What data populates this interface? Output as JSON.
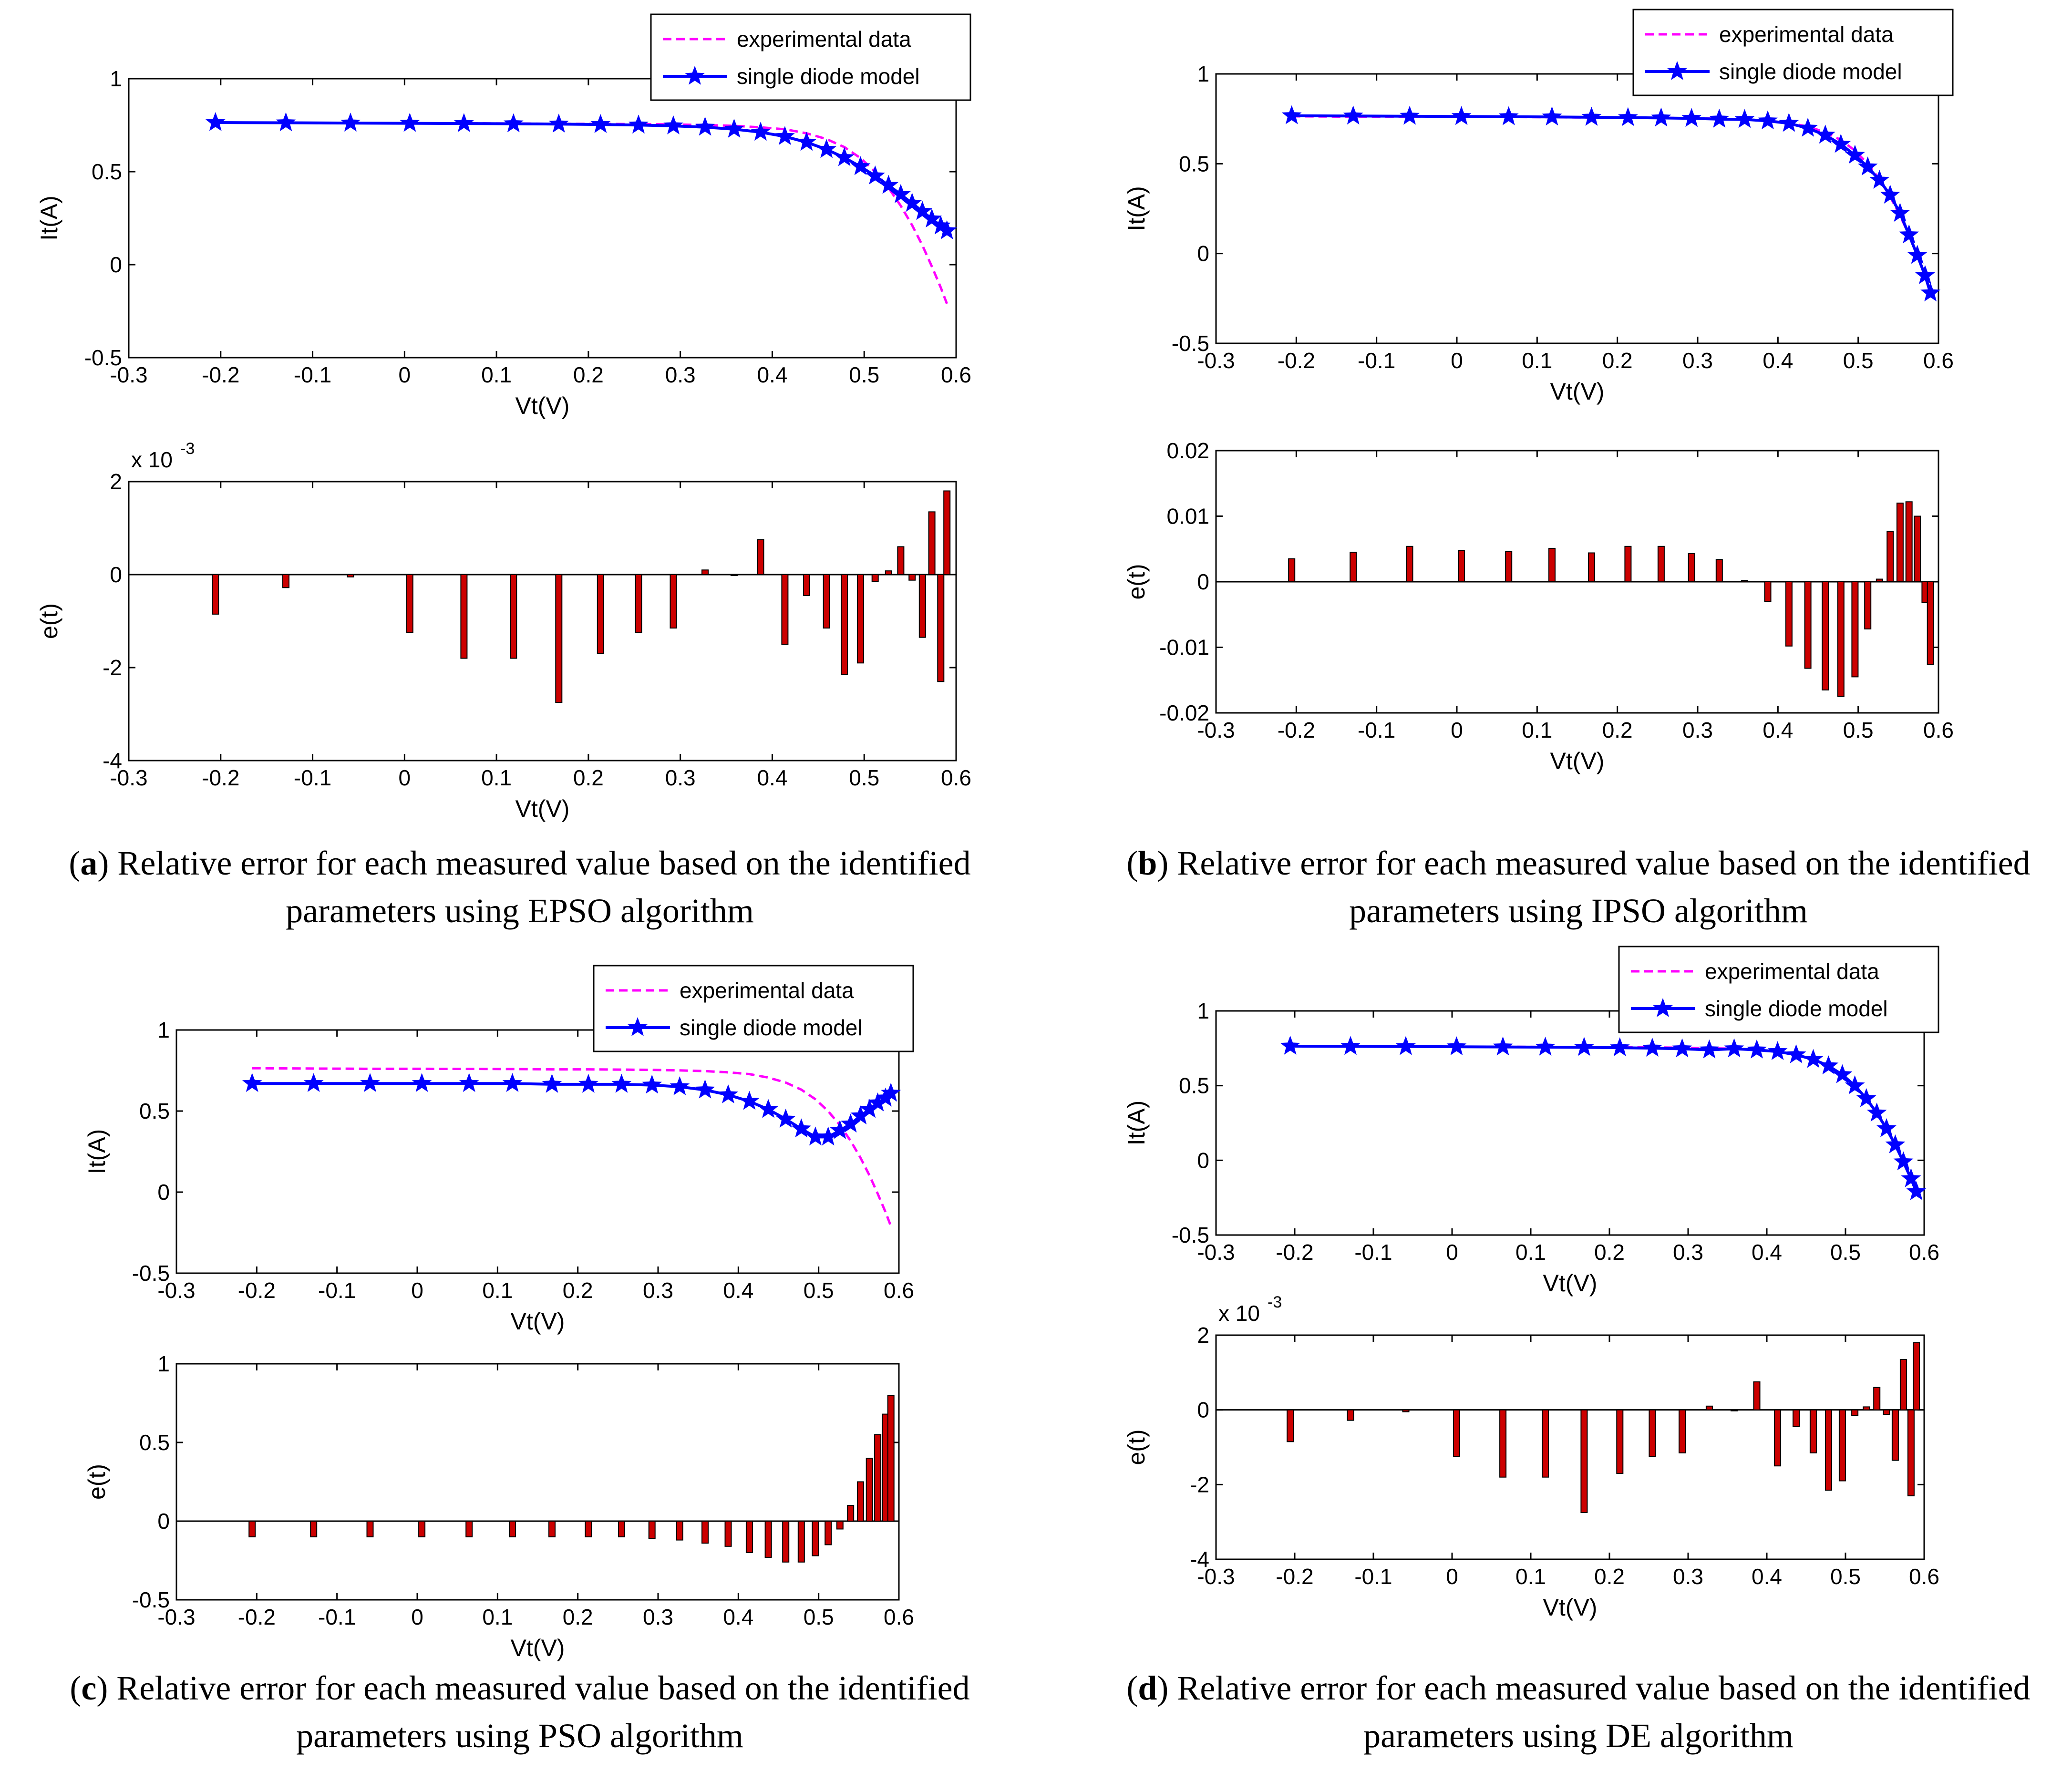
{
  "colors": {
    "experimental": "#ff00ff",
    "model": "#0000ff",
    "bar": "#cc0000"
  },
  "captions": [
    {
      "letter": "a",
      "text": "Relative error for each measured value based on the identified parameters using EPSO algorithm"
    },
    {
      "letter": "b",
      "text": "Relative error for each measured value based on the identified parameters using IPSO algorithm"
    },
    {
      "letter": "c",
      "text": "Relative error for each measured value based on the identified parameters using PSO algorithm"
    },
    {
      "letter": "d",
      "text": "Relative error for each measured value based on the identified parameters using DE algorithm"
    }
  ],
  "chart_data": [
    {
      "type": "line",
      "panel": "a",
      "xlabel": "Vt(V)",
      "ylabel": "It(A)",
      "xlim": [
        -0.3,
        0.6
      ],
      "ylim": [
        -0.5,
        1
      ],
      "xticks": [
        "-0.3",
        "-0.2",
        "-0.1",
        "0",
        "0.1",
        "0.2",
        "0.3",
        "0.4",
        "0.5",
        "0.6"
      ],
      "yticks": [
        "-0.5",
        "0",
        "0.5",
        "1"
      ],
      "legend": [
        "experimental data",
        "single diode model"
      ],
      "legend_position": "top-right",
      "x": [
        -0.2057,
        -0.1291,
        -0.0588,
        0.0057,
        0.0646,
        0.1185,
        0.1678,
        0.2132,
        0.2545,
        0.2924,
        0.3269,
        0.3585,
        0.3873,
        0.4137,
        0.4373,
        0.459,
        0.4784,
        0.496,
        0.5119,
        0.5265,
        0.5398,
        0.5521,
        0.5633,
        0.5736,
        0.5833,
        0.59
      ],
      "series": [
        {
          "name": "experimental data",
          "values": [
            0.764,
            0.762,
            0.7605,
            0.7605,
            0.76,
            0.759,
            0.757,
            0.757,
            0.7555,
            0.754,
            0.7505,
            0.7465,
            0.7385,
            0.728,
            0.7065,
            0.6755,
            0.632,
            0.573,
            0.499,
            0.413,
            0.3165,
            0.212,
            0.1035,
            -0.01,
            -0.123,
            -0.21
          ]
        },
        {
          "name": "single diode model",
          "values": [
            0.7641,
            0.7627,
            0.7614,
            0.7601,
            0.7588,
            0.7574,
            0.7558,
            0.7537,
            0.7507,
            0.7462,
            0.7393,
            0.7285,
            0.7123,
            0.6891,
            0.6583,
            0.6196,
            0.5755,
            0.5272,
            0.4771,
            0.4266,
            0.3772,
            0.3301,
            0.2861,
            0.2456,
            0.2082,
            0.1823
          ]
        }
      ]
    },
    {
      "type": "bar",
      "panel": "a",
      "xlabel": "Vt(V)",
      "ylabel": "e(t)",
      "multiplier": "x 10",
      "multiplier_exp": "-3",
      "xlim": [
        -0.3,
        0.6
      ],
      "ylim": [
        -4,
        2
      ],
      "xticks": [
        "-0.3",
        "-0.2",
        "-0.1",
        "0",
        "0.1",
        "0.2",
        "0.3",
        "0.4",
        "0.5",
        "0.6"
      ],
      "yticks": [
        "-4",
        "-2",
        "0",
        "2"
      ],
      "x": [
        -0.2057,
        -0.1291,
        -0.0588,
        0.0057,
        0.0646,
        0.1185,
        0.1678,
        0.2132,
        0.2545,
        0.2924,
        0.3269,
        0.3585,
        0.3873,
        0.4137,
        0.4373,
        0.459,
        0.4784,
        0.496,
        0.5119,
        0.5265,
        0.5398,
        0.5521,
        0.5633,
        0.5736,
        0.5833,
        0.59
      ],
      "values": [
        -0.85,
        -0.28,
        -0.05,
        -1.25,
        -1.8,
        -1.8,
        -2.75,
        -1.7,
        -1.25,
        -1.15,
        0.1,
        0,
        0.75,
        -1.5,
        -0.45,
        -1.15,
        -2.15,
        -1.9,
        -0.15,
        0.08,
        0.6,
        -0.12,
        -1.35,
        1.35,
        -2.3,
        1.8
      ]
    },
    {
      "type": "line",
      "panel": "b",
      "xlabel": "Vt(V)",
      "ylabel": "It(A)",
      "xlim": [
        -0.3,
        0.6
      ],
      "ylim": [
        -0.5,
        1
      ],
      "xticks": [
        "-0.3",
        "-0.2",
        "-0.1",
        "0",
        "0.1",
        "0.2",
        "0.3",
        "0.4",
        "0.5",
        "0.6"
      ],
      "yticks": [
        "-0.5",
        "0",
        "0.5",
        "1"
      ],
      "legend": [
        "experimental data",
        "single diode model"
      ],
      "legend_position": "top-right",
      "x": [
        -0.2057,
        -0.1291,
        -0.0588,
        0.0057,
        0.0646,
        0.1185,
        0.1678,
        0.2132,
        0.2545,
        0.2924,
        0.3269,
        0.3585,
        0.3873,
        0.4137,
        0.4373,
        0.459,
        0.4784,
        0.496,
        0.5119,
        0.5265,
        0.5398,
        0.5521,
        0.5633,
        0.5736,
        0.5833,
        0.59
      ],
      "series": [
        {
          "name": "experimental data",
          "values": [
            0.764,
            0.762,
            0.7605,
            0.7605,
            0.76,
            0.759,
            0.757,
            0.757,
            0.7555,
            0.754,
            0.7505,
            0.7465,
            0.7385,
            0.728,
            0.7065,
            0.6755,
            0.632,
            0.573,
            0.499,
            0.413,
            0.3165,
            0.212,
            0.1035,
            -0.01,
            -0.123,
            -0.21
          ]
        },
        {
          "name": "single diode model",
          "values": [
            0.7671,
            0.7656,
            0.7645,
            0.7628,
            0.7617,
            0.7602,
            0.7588,
            0.7569,
            0.7547,
            0.7524,
            0.7481,
            0.7465,
            0.7384,
            0.7249,
            0.6976,
            0.6593,
            0.6081,
            0.5473,
            0.4821,
            0.408,
            0.3251,
            0.2241,
            0.1039,
            -0.0101,
            -0.1227,
            -0.2195
          ]
        }
      ]
    },
    {
      "type": "bar",
      "panel": "b",
      "xlabel": "Vt(V)",
      "ylabel": "e(t)",
      "xlim": [
        -0.3,
        0.6
      ],
      "ylim": [
        -0.02,
        0.02
      ],
      "xticks": [
        "-0.3",
        "-0.2",
        "-0.1",
        "0",
        "0.1",
        "0.2",
        "0.3",
        "0.4",
        "0.5",
        "0.6"
      ],
      "yticks": [
        "-0.02",
        "-0.01",
        "0",
        "0.01",
        "0.02"
      ],
      "x": [
        -0.2057,
        -0.1291,
        -0.0588,
        0.0057,
        0.0646,
        0.1185,
        0.1678,
        0.2132,
        0.2545,
        0.2924,
        0.3269,
        0.3585,
        0.3873,
        0.4137,
        0.4373,
        0.459,
        0.4784,
        0.496,
        0.5119,
        0.5265,
        0.5398,
        0.5521,
        0.5633,
        0.5736,
        0.5833,
        0.59
      ],
      "values": [
        0.0035,
        0.0045,
        0.0054,
        0.0048,
        0.0046,
        0.0051,
        0.0044,
        0.0054,
        0.0054,
        0.0043,
        0.0034,
        0.0002,
        -0.003,
        -0.0098,
        -0.0132,
        -0.0165,
        -0.0175,
        -0.0145,
        -0.0072,
        0.0004,
        0.0077,
        0.012,
        0.0122,
        0.01,
        -0.0032,
        -0.0126
      ]
    },
    {
      "type": "line",
      "panel": "c",
      "xlabel": "Vt(V)",
      "ylabel": "It(A)",
      "xlim": [
        -0.3,
        0.6
      ],
      "ylim": [
        -0.5,
        1
      ],
      "xticks": [
        "-0.3",
        "-0.2",
        "-0.1",
        "0",
        "0.1",
        "0.2",
        "0.3",
        "0.4",
        "0.5",
        "0.6"
      ],
      "yticks": [
        "-0.5",
        "0",
        "0.5",
        "1"
      ],
      "legend": [
        "experimental data",
        "single diode model"
      ],
      "legend_position": "top-right",
      "x": [
        -0.2057,
        -0.1291,
        -0.0588,
        0.0057,
        0.0646,
        0.1185,
        0.1678,
        0.2132,
        0.2545,
        0.2924,
        0.3269,
        0.3585,
        0.3873,
        0.4137,
        0.4373,
        0.459,
        0.4784,
        0.496,
        0.5119,
        0.5265,
        0.5398,
        0.5521,
        0.5633,
        0.5736,
        0.5833,
        0.59
      ],
      "series": [
        {
          "name": "experimental data",
          "values": [
            0.764,
            0.762,
            0.7605,
            0.7605,
            0.76,
            0.759,
            0.757,
            0.757,
            0.7555,
            0.754,
            0.7505,
            0.7465,
            0.7385,
            0.728,
            0.7065,
            0.6755,
            0.632,
            0.573,
            0.499,
            0.413,
            0.3165,
            0.212,
            0.1035,
            -0.01,
            -0.123,
            -0.21
          ]
        },
        {
          "name": "single diode model",
          "values": [
            0.67,
            0.67,
            0.67,
            0.67,
            0.67,
            0.67,
            0.665,
            0.665,
            0.665,
            0.66,
            0.65,
            0.63,
            0.6,
            0.56,
            0.51,
            0.45,
            0.39,
            0.34,
            0.34,
            0.38,
            0.42,
            0.47,
            0.51,
            0.55,
            0.58,
            0.61
          ]
        }
      ]
    },
    {
      "type": "bar",
      "panel": "c",
      "xlabel": "Vt(V)",
      "ylabel": "e(t)",
      "xlim": [
        -0.3,
        0.6
      ],
      "ylim": [
        -0.5,
        1
      ],
      "xticks": [
        "-0.3",
        "-0.2",
        "-0.1",
        "0",
        "0.1",
        "0.2",
        "0.3",
        "0.4",
        "0.5",
        "0.6"
      ],
      "yticks": [
        "-0.5",
        "0",
        "0.5",
        "1"
      ],
      "x": [
        -0.2057,
        -0.1291,
        -0.0588,
        0.0057,
        0.0646,
        0.1185,
        0.1678,
        0.2132,
        0.2545,
        0.2924,
        0.3269,
        0.3585,
        0.3873,
        0.4137,
        0.4373,
        0.459,
        0.4784,
        0.496,
        0.5119,
        0.5265,
        0.5398,
        0.5521,
        0.5633,
        0.5736,
        0.5833,
        0.59
      ],
      "values": [
        -0.1,
        -0.1,
        -0.1,
        -0.1,
        -0.1,
        -0.1,
        -0.1,
        -0.1,
        -0.1,
        -0.11,
        -0.12,
        -0.14,
        -0.16,
        -0.2,
        -0.23,
        -0.26,
        -0.26,
        -0.22,
        -0.15,
        -0.05,
        0.1,
        0.25,
        0.4,
        0.55,
        0.68,
        0.8
      ]
    },
    {
      "type": "line",
      "panel": "d",
      "xlabel": "Vt(V)",
      "ylabel": "It(A)",
      "xlim": [
        -0.3,
        0.6
      ],
      "ylim": [
        -0.5,
        1
      ],
      "xticks": [
        "-0.3",
        "-0.2",
        "-0.1",
        "0",
        "0.1",
        "0.2",
        "0.3",
        "0.4",
        "0.5",
        "0.6"
      ],
      "yticks": [
        "-0.5",
        "0",
        "0.5",
        "1"
      ],
      "legend": [
        "experimental data",
        "single diode model"
      ],
      "legend_position": "top-right",
      "x": [
        -0.2057,
        -0.1291,
        -0.0588,
        0.0057,
        0.0646,
        0.1185,
        0.1678,
        0.2132,
        0.2545,
        0.2924,
        0.3269,
        0.3585,
        0.3873,
        0.4137,
        0.4373,
        0.459,
        0.4784,
        0.496,
        0.5119,
        0.5265,
        0.5398,
        0.5521,
        0.5633,
        0.5736,
        0.5833,
        0.59
      ],
      "series": [
        {
          "name": "experimental data",
          "values": [
            0.764,
            0.762,
            0.7605,
            0.7605,
            0.76,
            0.759,
            0.757,
            0.757,
            0.7555,
            0.754,
            0.7505,
            0.7465,
            0.7385,
            0.728,
            0.7065,
            0.6755,
            0.632,
            0.573,
            0.499,
            0.413,
            0.3165,
            0.212,
            0.1035,
            -0.01,
            -0.123,
            -0.21
          ]
        },
        {
          "name": "single diode model",
          "values": [
            0.7641,
            0.7627,
            0.7614,
            0.7601,
            0.7588,
            0.7574,
            0.7558,
            0.7537,
            0.7507,
            0.7462,
            0.7393,
            0.7465,
            0.7385,
            0.728,
            0.7065,
            0.6755,
            0.632,
            0.573,
            0.499,
            0.413,
            0.3165,
            0.212,
            0.1035,
            -0.01,
            -0.123,
            -0.21
          ]
        }
      ]
    },
    {
      "type": "bar",
      "panel": "d",
      "xlabel": "Vt(V)",
      "ylabel": "e(t)",
      "multiplier": "x 10",
      "multiplier_exp": "-3",
      "xlim": [
        -0.3,
        0.6
      ],
      "ylim": [
        -4,
        2
      ],
      "xticks": [
        "-0.3",
        "-0.2",
        "-0.1",
        "0",
        "0.1",
        "0.2",
        "0.3",
        "0.4",
        "0.5",
        "0.6"
      ],
      "yticks": [
        "-4",
        "-2",
        "0",
        "2"
      ],
      "x": [
        -0.2057,
        -0.1291,
        -0.0588,
        0.0057,
        0.0646,
        0.1185,
        0.1678,
        0.2132,
        0.2545,
        0.2924,
        0.3269,
        0.3585,
        0.3873,
        0.4137,
        0.4373,
        0.459,
        0.4784,
        0.496,
        0.5119,
        0.5265,
        0.5398,
        0.5521,
        0.5633,
        0.5736,
        0.5833,
        0.59
      ],
      "values": [
        -0.85,
        -0.28,
        -0.05,
        -1.25,
        -1.8,
        -1.8,
        -2.75,
        -1.7,
        -1.25,
        -1.15,
        0.1,
        0,
        0.75,
        -1.5,
        -0.45,
        -1.15,
        -2.15,
        -1.9,
        -0.15,
        0.08,
        0.6,
        -0.12,
        -1.35,
        1.35,
        -2.3,
        1.8
      ]
    }
  ]
}
